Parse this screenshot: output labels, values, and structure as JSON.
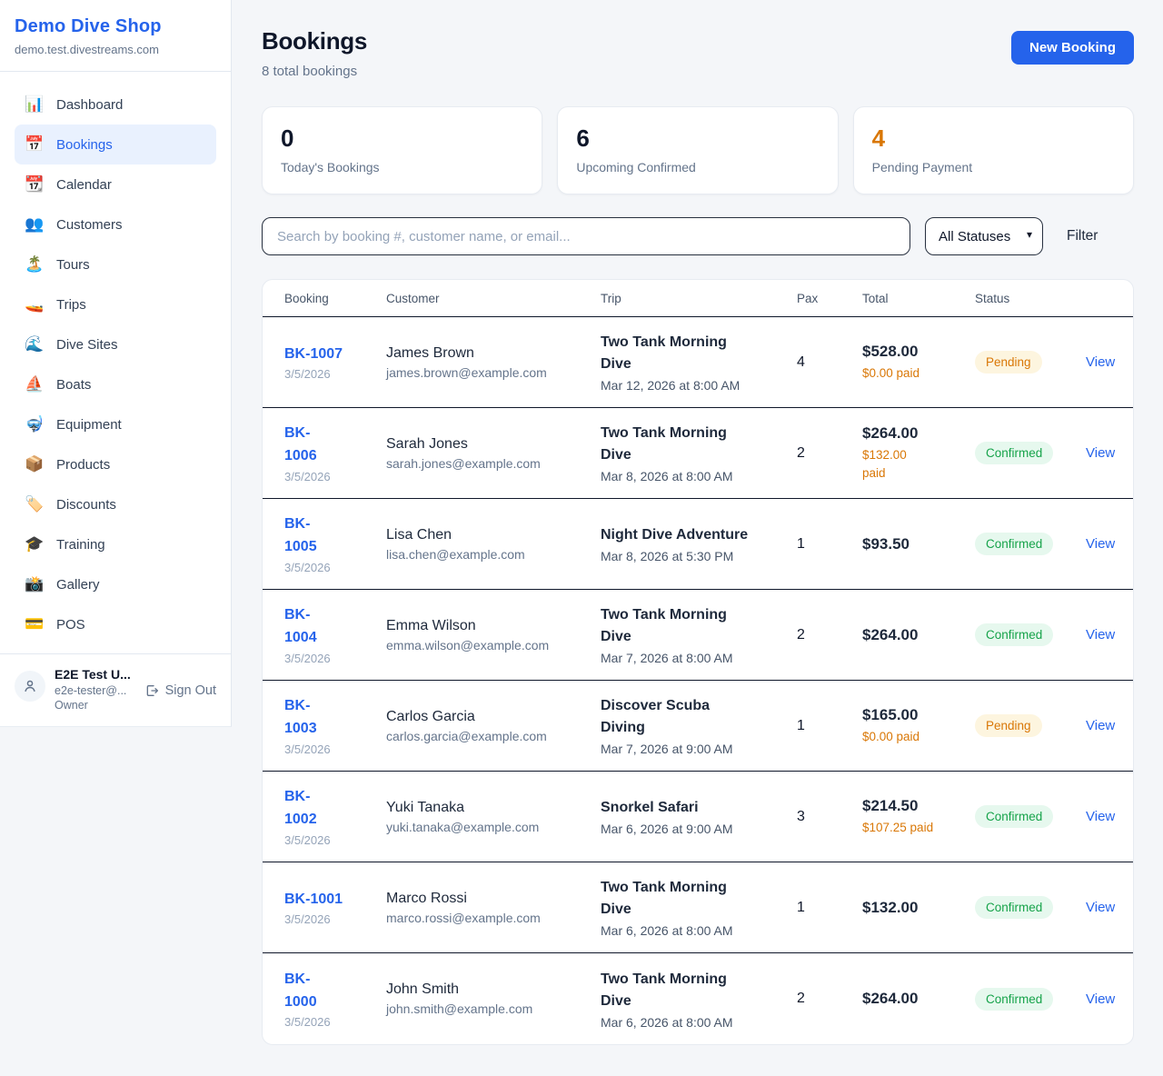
{
  "brand": {
    "name": "Demo Dive Shop",
    "domain": "demo.test.divestreams.com"
  },
  "colors": {
    "accent": "#2563eb",
    "pending_bg": "#fdf5df",
    "pending_text": "#d97706",
    "confirmed_bg": "#e6f8ee",
    "confirmed_text": "#16a34a",
    "paid_text": "#d97706",
    "warning_stat": "#d97706"
  },
  "sidebar": {
    "items": [
      {
        "name": "dashboard",
        "label": "Dashboard",
        "icon": "📊",
        "active": false
      },
      {
        "name": "bookings",
        "label": "Bookings",
        "icon": "📅",
        "active": true
      },
      {
        "name": "calendar",
        "label": "Calendar",
        "icon": "📆",
        "active": false
      },
      {
        "name": "customers",
        "label": "Customers",
        "icon": "👥",
        "active": false
      },
      {
        "name": "tours",
        "label": "Tours",
        "icon": "🏝️",
        "active": false
      },
      {
        "name": "trips",
        "label": "Trips",
        "icon": "🚤",
        "active": false
      },
      {
        "name": "dive-sites",
        "label": "Dive Sites",
        "icon": "🌊",
        "active": false
      },
      {
        "name": "boats",
        "label": "Boats",
        "icon": "⛵",
        "active": false
      },
      {
        "name": "equipment",
        "label": "Equipment",
        "icon": "🤿",
        "active": false
      },
      {
        "name": "products",
        "label": "Products",
        "icon": "📦",
        "active": false
      },
      {
        "name": "discounts",
        "label": "Discounts",
        "icon": "🏷️",
        "active": false
      },
      {
        "name": "training",
        "label": "Training",
        "icon": "🎓",
        "active": false
      },
      {
        "name": "gallery",
        "label": "Gallery",
        "icon": "📸",
        "active": false
      },
      {
        "name": "pos",
        "label": "POS",
        "icon": "💳",
        "active": false
      }
    ]
  },
  "user": {
    "name": "E2E Test U...",
    "email": "e2e-tester@...",
    "role": "Owner",
    "sign_out_label": "Sign Out"
  },
  "header": {
    "title": "Bookings",
    "subtitle": "8 total bookings",
    "new_booking_label": "New Booking"
  },
  "stats": [
    {
      "value": "0",
      "label": "Today's Bookings",
      "warning": false
    },
    {
      "value": "6",
      "label": "Upcoming Confirmed",
      "warning": false
    },
    {
      "value": "4",
      "label": "Pending Payment",
      "warning": true
    }
  ],
  "filters": {
    "search_placeholder": "Search by booking #, customer name, or email...",
    "status_selected": "All Statuses",
    "filter_label": "Filter"
  },
  "table": {
    "headers": {
      "booking": "Booking",
      "customer": "Customer",
      "trip": "Trip",
      "pax": "Pax",
      "total": "Total",
      "status": "Status"
    },
    "view_label": "View",
    "rows": [
      {
        "number": "BK-1007",
        "number_two_line": false,
        "date": "3/5/2026",
        "customer_name": "James Brown",
        "customer_email": "james.brown@example.com",
        "trip": "Two Tank Morning Dive",
        "trip_datetime": "Mar 12, 2026 at 8:00 AM",
        "pax": "4",
        "total": "$528.00",
        "paid": "$0.00 paid",
        "paid_two_line": false,
        "status": "Pending"
      },
      {
        "number": "BK-1006",
        "number_two_line": true,
        "date": "3/5/2026",
        "customer_name": "Sarah Jones",
        "customer_email": "sarah.jones@example.com",
        "trip": "Two Tank Morning Dive",
        "trip_datetime": "Mar 8, 2026 at 8:00 AM",
        "pax": "2",
        "total": "$264.00",
        "paid": "$132.00 paid",
        "paid_two_line": true,
        "status": "Confirmed"
      },
      {
        "number": "BK-1005",
        "number_two_line": true,
        "date": "3/5/2026",
        "customer_name": "Lisa Chen",
        "customer_email": "lisa.chen@example.com",
        "trip": "Night Dive Adventure",
        "trip_datetime": "Mar 8, 2026 at 5:30 PM",
        "pax": "1",
        "total": "$93.50",
        "paid": null,
        "paid_two_line": false,
        "status": "Confirmed"
      },
      {
        "number": "BK-1004",
        "number_two_line": true,
        "date": "3/5/2026",
        "customer_name": "Emma Wilson",
        "customer_email": "emma.wilson@example.com",
        "trip": "Two Tank Morning Dive",
        "trip_datetime": "Mar 7, 2026 at 8:00 AM",
        "pax": "2",
        "total": "$264.00",
        "paid": null,
        "paid_two_line": false,
        "status": "Confirmed"
      },
      {
        "number": "BK-1003",
        "number_two_line": true,
        "date": "3/5/2026",
        "customer_name": "Carlos Garcia",
        "customer_email": "carlos.garcia@example.com",
        "trip": "Discover Scuba Diving",
        "trip_datetime": "Mar 7, 2026 at 9:00 AM",
        "pax": "1",
        "total": "$165.00",
        "paid": "$0.00 paid",
        "paid_two_line": false,
        "status": "Pending"
      },
      {
        "number": "BK-1002",
        "number_two_line": true,
        "date": "3/5/2026",
        "customer_name": "Yuki Tanaka",
        "customer_email": "yuki.tanaka@example.com",
        "trip": "Snorkel Safari",
        "trip_datetime": "Mar 6, 2026 at 9:00 AM",
        "pax": "3",
        "total": "$214.50",
        "paid": "$107.25 paid",
        "paid_two_line": false,
        "status": "Confirmed"
      },
      {
        "number": "BK-1001",
        "number_two_line": false,
        "date": "3/5/2026",
        "customer_name": "Marco Rossi",
        "customer_email": "marco.rossi@example.com",
        "trip": "Two Tank Morning Dive",
        "trip_datetime": "Mar 6, 2026 at 8:00 AM",
        "pax": "1",
        "total": "$132.00",
        "paid": null,
        "paid_two_line": false,
        "status": "Confirmed"
      },
      {
        "number": "BK-1000",
        "number_two_line": true,
        "date": "3/5/2026",
        "customer_name": "John Smith",
        "customer_email": "john.smith@example.com",
        "trip": "Two Tank Morning Dive",
        "trip_datetime": "Mar 6, 2026 at 8:00 AM",
        "pax": "2",
        "total": "$264.00",
        "paid": null,
        "paid_two_line": false,
        "status": "Confirmed"
      }
    ]
  }
}
